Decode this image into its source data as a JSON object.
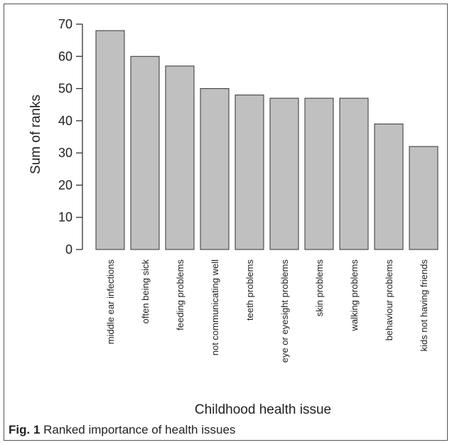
{
  "chart_data": {
    "type": "bar",
    "categories": [
      "middle ear infections",
      "often being sick",
      "feeding problems",
      "not communicating well",
      "teeth problems",
      "eye or eyesight problems",
      "skin problems",
      "walking problems",
      "behaviour problems",
      "kids not having friends"
    ],
    "values": [
      68,
      60,
      57,
      50,
      48,
      47,
      47,
      47,
      39,
      32
    ],
    "title": "",
    "xlabel": "Childhood health issue",
    "ylabel": "Sum of ranks",
    "ylim": [
      0,
      70
    ],
    "yticks": [
      0,
      10,
      20,
      30,
      40,
      50,
      60,
      70
    ],
    "grid": false,
    "bar_color": "#c0c0c0",
    "bar_edge_color": "#333333"
  },
  "caption": {
    "label": "Fig. 1",
    "text": "Ranked importance of health issues"
  }
}
